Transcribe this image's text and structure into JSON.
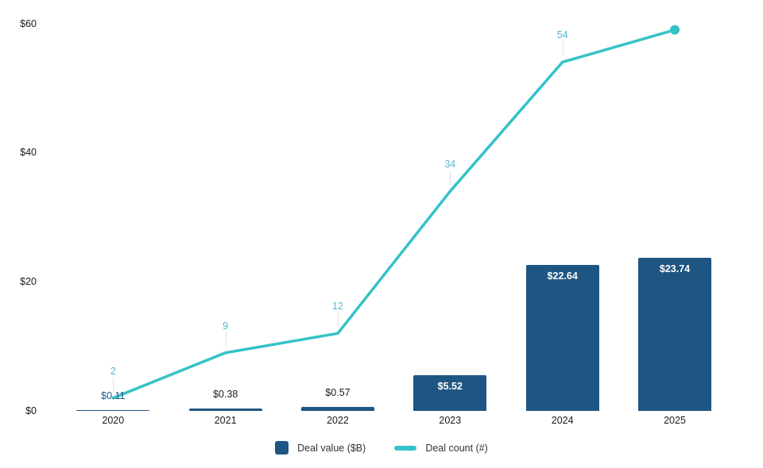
{
  "chart_data": {
    "type": "bar+line",
    "title": "",
    "categories": [
      "2020",
      "2021",
      "2022",
      "2023",
      "2024",
      "2025"
    ],
    "series": [
      {
        "name": "Deal value ($B)",
        "type": "bar",
        "values": [
          0.11,
          0.38,
          0.57,
          5.52,
          22.64,
          23.74
        ],
        "labels": [
          "$0.11",
          "$0.38",
          "$0.57",
          "$5.52",
          "$22.64",
          "$23.74"
        ],
        "label_placement": [
          "outside",
          "outside",
          "outside",
          "inside",
          "inside",
          "inside"
        ],
        "label_colors": [
          "#1f5582",
          "#1a1a1a",
          "#1a1a1a",
          "#ffffff",
          "#ffffff",
          "#ffffff"
        ]
      },
      {
        "name": "Deal count (#)",
        "type": "line",
        "values": [
          2,
          9,
          12,
          34,
          54,
          59
        ],
        "labels": [
          "2",
          "9",
          "12",
          "34",
          "54",
          ""
        ],
        "end_marker": true
      }
    ],
    "y_axis": {
      "ticks": [
        "$0",
        "$20",
        "$40",
        "$60"
      ],
      "tick_values": [
        0,
        20,
        40,
        60
      ],
      "range": [
        0,
        60
      ]
    },
    "x_axis": {
      "ticks": [
        "2020",
        "2021",
        "2022",
        "2023",
        "2024",
        "2025"
      ]
    },
    "grid": false,
    "legend_position": "bottom"
  },
  "colors": {
    "bar": "#1f5582",
    "line": "#35c2c9",
    "count_label": "#54b6d6",
    "leader_line": "#e1e1e1",
    "axis_text": "#1a1a1a",
    "legend_text": "#333333",
    "background": "#ffffff"
  }
}
